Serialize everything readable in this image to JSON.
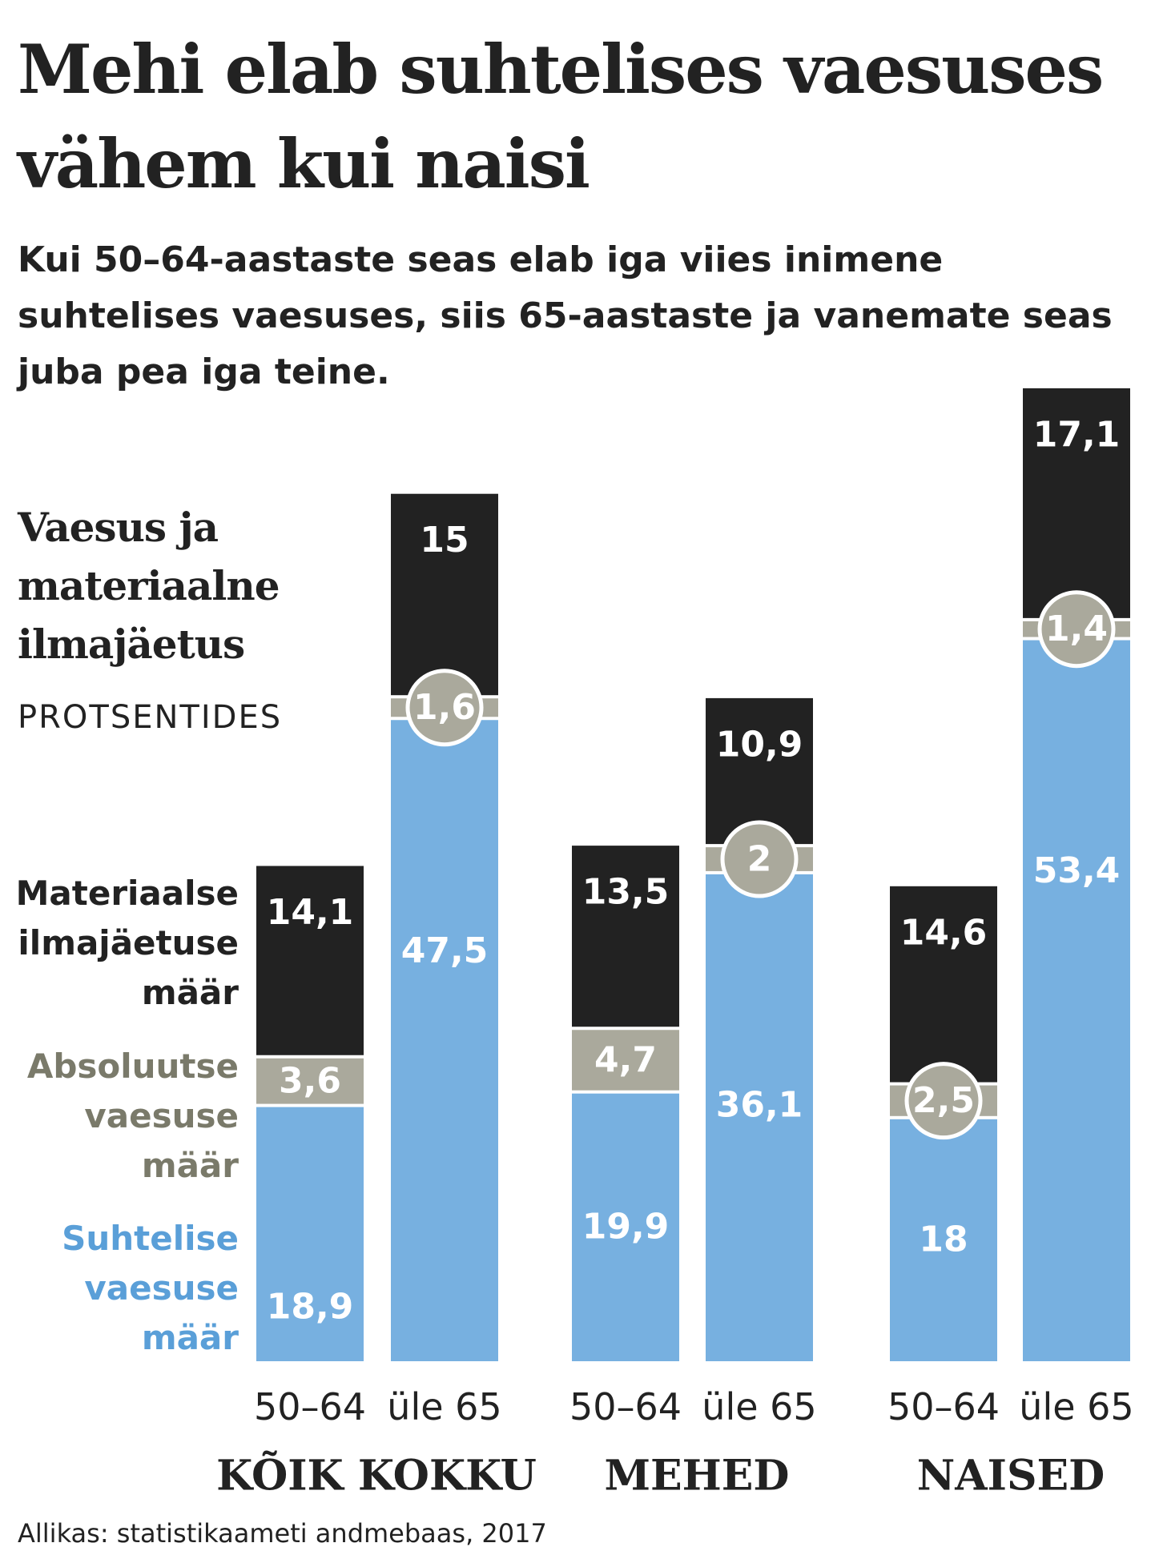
{
  "title": "Mehi elab suhtelises vaesuses vähem kui naisi",
  "subtitle": "Kui 50–64-aastaste seas elab iga viies inimene suhtelises vaesuses, siis 65-aastaste ja vanemate seas juba pea iga teine.",
  "chart_heading": "Vaesus ja materiaalne ilmajäetus",
  "unit_label": "PROTSENTIDES",
  "legend": {
    "material": "Materiaalse ilmajäetuse määr",
    "absolute": "Absoluutse vaesuse määr",
    "relative": "Suhtelise vaesuse määr"
  },
  "source": "Allikas: statistikaameti andmebaas, 2017",
  "colors": {
    "material": "#222222",
    "absolute": "#aaa99c",
    "relative": "#77b0e0",
    "circle_border": "#ffffff",
    "label_light": "#ffffff"
  },
  "chart_data": {
    "type": "bar",
    "stacked": true,
    "groups": [
      "KÕIK KOKKU",
      "MEHED",
      "NAISED"
    ],
    "categories": [
      "50–64",
      "üle 65"
    ],
    "series": [
      {
        "name": "Suhtelise vaesuse määr",
        "key": "relative",
        "values": [
          [
            18.9,
            47.5
          ],
          [
            19.9,
            36.1
          ],
          [
            18,
            53.4
          ]
        ],
        "labels": [
          [
            "18,9",
            "47,5"
          ],
          [
            "19,9",
            "36,1"
          ],
          [
            "18",
            "53,4"
          ]
        ]
      },
      {
        "name": "Absoluutse vaesuse määr",
        "key": "absolute",
        "values": [
          [
            3.6,
            1.6
          ],
          [
            4.7,
            2
          ],
          [
            2.5,
            1.4
          ]
        ],
        "labels": [
          [
            "3,6",
            "1,6"
          ],
          [
            "4,7",
            "2"
          ],
          [
            "2,5",
            "1,4"
          ]
        ]
      },
      {
        "name": "Materiaalse ilmajäetuse määr",
        "key": "material",
        "values": [
          [
            14.1,
            15
          ],
          [
            13.5,
            10.9
          ],
          [
            14.6,
            17.1
          ]
        ],
        "labels": [
          [
            "14,1",
            "15"
          ],
          [
            "13,5",
            "10,9"
          ],
          [
            "14,6",
            "17,1"
          ]
        ]
      }
    ],
    "ylabel": "PROTSENTIDES",
    "grid": false,
    "legend_position": "left"
  }
}
